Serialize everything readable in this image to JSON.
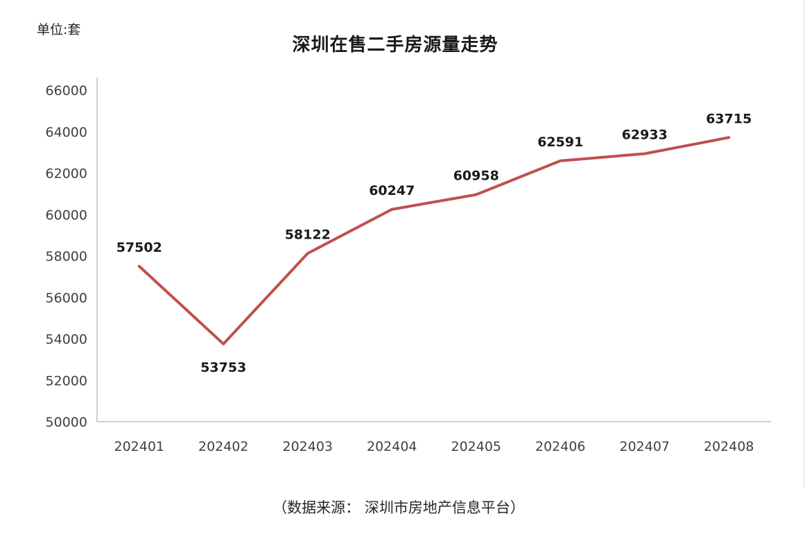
{
  "chart_data": {
    "type": "line",
    "title": "深圳在售二手房源量走势",
    "ylabel": "单位:套",
    "categories": [
      "202401",
      "202402",
      "202403",
      "202404",
      "202405",
      "202406",
      "202407",
      "202408"
    ],
    "values": [
      57502,
      53753,
      58122,
      60247,
      60958,
      62591,
      62933,
      63715
    ],
    "ylim": [
      50000,
      66000
    ],
    "ytick_step": 2000,
    "grid": false,
    "legend": "none",
    "line_color": "#c0504d",
    "label_color": "#1a1a1a",
    "axis_color": "#bdbdbd",
    "tick_label_color": "#3f3f3f"
  },
  "caption": {
    "source": "（数据来源： 深圳市房地产信息平台）"
  }
}
